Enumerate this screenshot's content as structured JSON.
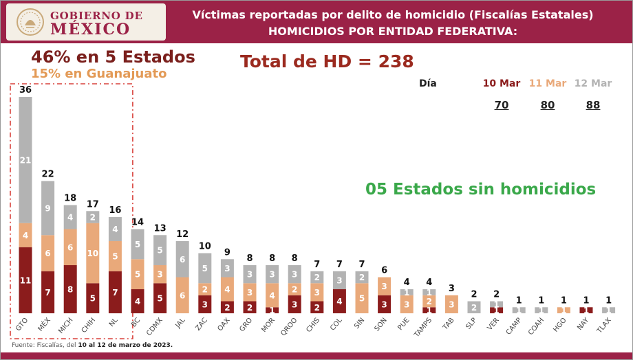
{
  "header": {
    "brand_top": "GOBIERNO DE",
    "brand_bottom": "MÉXICO",
    "title_line1": "Víctimas reportadas por delito de homicidio (Fiscalías Estatales)",
    "title_line2": "HOMICIDIOS POR ENTIDAD FEDERATIVA:"
  },
  "summary": {
    "headline": "46% en 5 Estados",
    "sub": "15% en Guanajuato",
    "total": "Total de HD = 238",
    "no_homicides": "05 Estados sin homicidios"
  },
  "days": {
    "label": "Día",
    "items": [
      {
        "name": "10 Mar",
        "total": "70"
      },
      {
        "name": "11 Mar",
        "total": "80"
      },
      {
        "name": "12 Mar",
        "total": "88"
      }
    ]
  },
  "footer": {
    "prefix": "Fuente: Fiscalías, del ",
    "dates": "10 al 12 de marzo de 2023."
  },
  "colors": {
    "day1": "#8b1c1c",
    "day2": "#e9a97a",
    "day3": "#b3b3b3",
    "brand": "#9b2247",
    "highlight_box": "#d9413b"
  },
  "chart_data": {
    "type": "bar",
    "stacked": true,
    "categories": [
      "GTO",
      "MÉX",
      "MICH",
      "CHIH",
      "NL",
      "BC",
      "CDMX",
      "JAL",
      "ZAC",
      "OAX",
      "GRO",
      "MOR",
      "QROO",
      "CHIS",
      "COL",
      "SIN",
      "SON",
      "PUE",
      "TAMPS",
      "TAB",
      "SLP",
      "VER",
      "CAMP",
      "COAH",
      "HGO",
      "NAY",
      "TLAX"
    ],
    "totals": [
      36,
      22,
      18,
      17,
      16,
      14,
      13,
      12,
      10,
      9,
      8,
      8,
      8,
      7,
      7,
      7,
      6,
      4,
      4,
      3,
      2,
      2,
      1,
      1,
      1,
      1,
      1
    ],
    "series": [
      {
        "name": "10 Mar",
        "values": [
          11,
          7,
          8,
          5,
          7,
          4,
          5,
          0,
          3,
          2,
          2,
          1,
          3,
          2,
          4,
          0,
          3,
          0,
          1,
          0,
          0,
          1,
          0,
          0,
          0,
          1,
          0
        ]
      },
      {
        "name": "11 Mar",
        "values": [
          4,
          6,
          6,
          10,
          5,
          5,
          3,
          6,
          2,
          4,
          3,
          4,
          2,
          3,
          0,
          5,
          3,
          3,
          2,
          3,
          0,
          0,
          0,
          0,
          1,
          0,
          0
        ]
      },
      {
        "name": "12 Mar",
        "values": [
          21,
          9,
          4,
          2,
          4,
          5,
          5,
          6,
          5,
          3,
          3,
          3,
          3,
          2,
          3,
          2,
          0,
          1,
          1,
          0,
          2,
          1,
          1,
          1,
          0,
          0,
          1
        ]
      }
    ],
    "highlighted_categories": [
      "GTO",
      "MÉX",
      "MICH",
      "CHIH",
      "NL"
    ],
    "ylim": [
      0,
      36
    ]
  }
}
